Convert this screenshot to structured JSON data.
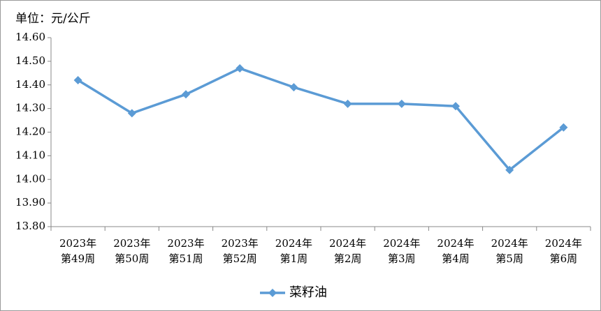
{
  "chart_data": {
    "type": "line",
    "y_axis_label": "单位：元/公斤",
    "categories": [
      "2023年\n第49周",
      "2023年\n第50周",
      "2023年\n第51周",
      "2023年\n第52周",
      "2024年\n第1周",
      "2024年\n第2周",
      "2024年\n第3周",
      "2024年\n第4周",
      "2024年\n第5周",
      "2024年\n第6周"
    ],
    "series": [
      {
        "name": "菜籽油",
        "color": "#5b9bd5",
        "values": [
          14.42,
          14.28,
          14.36,
          14.47,
          14.39,
          14.32,
          14.32,
          14.31,
          14.04,
          14.22
        ]
      }
    ],
    "ylim": [
      13.8,
      14.6
    ],
    "yticks": [
      {
        "value": 13.8,
        "label": "13.80"
      },
      {
        "value": 13.9,
        "label": "13.90"
      },
      {
        "value": 14.0,
        "label": "14.00"
      },
      {
        "value": 14.1,
        "label": "14.10"
      },
      {
        "value": 14.2,
        "label": "14.20"
      },
      {
        "value": 14.3,
        "label": "14.30"
      },
      {
        "value": 14.4,
        "label": "14.40"
      },
      {
        "value": 14.5,
        "label": "14.50"
      },
      {
        "value": 14.6,
        "label": "14.60"
      }
    ],
    "grid": false,
    "legend": "bottom"
  }
}
